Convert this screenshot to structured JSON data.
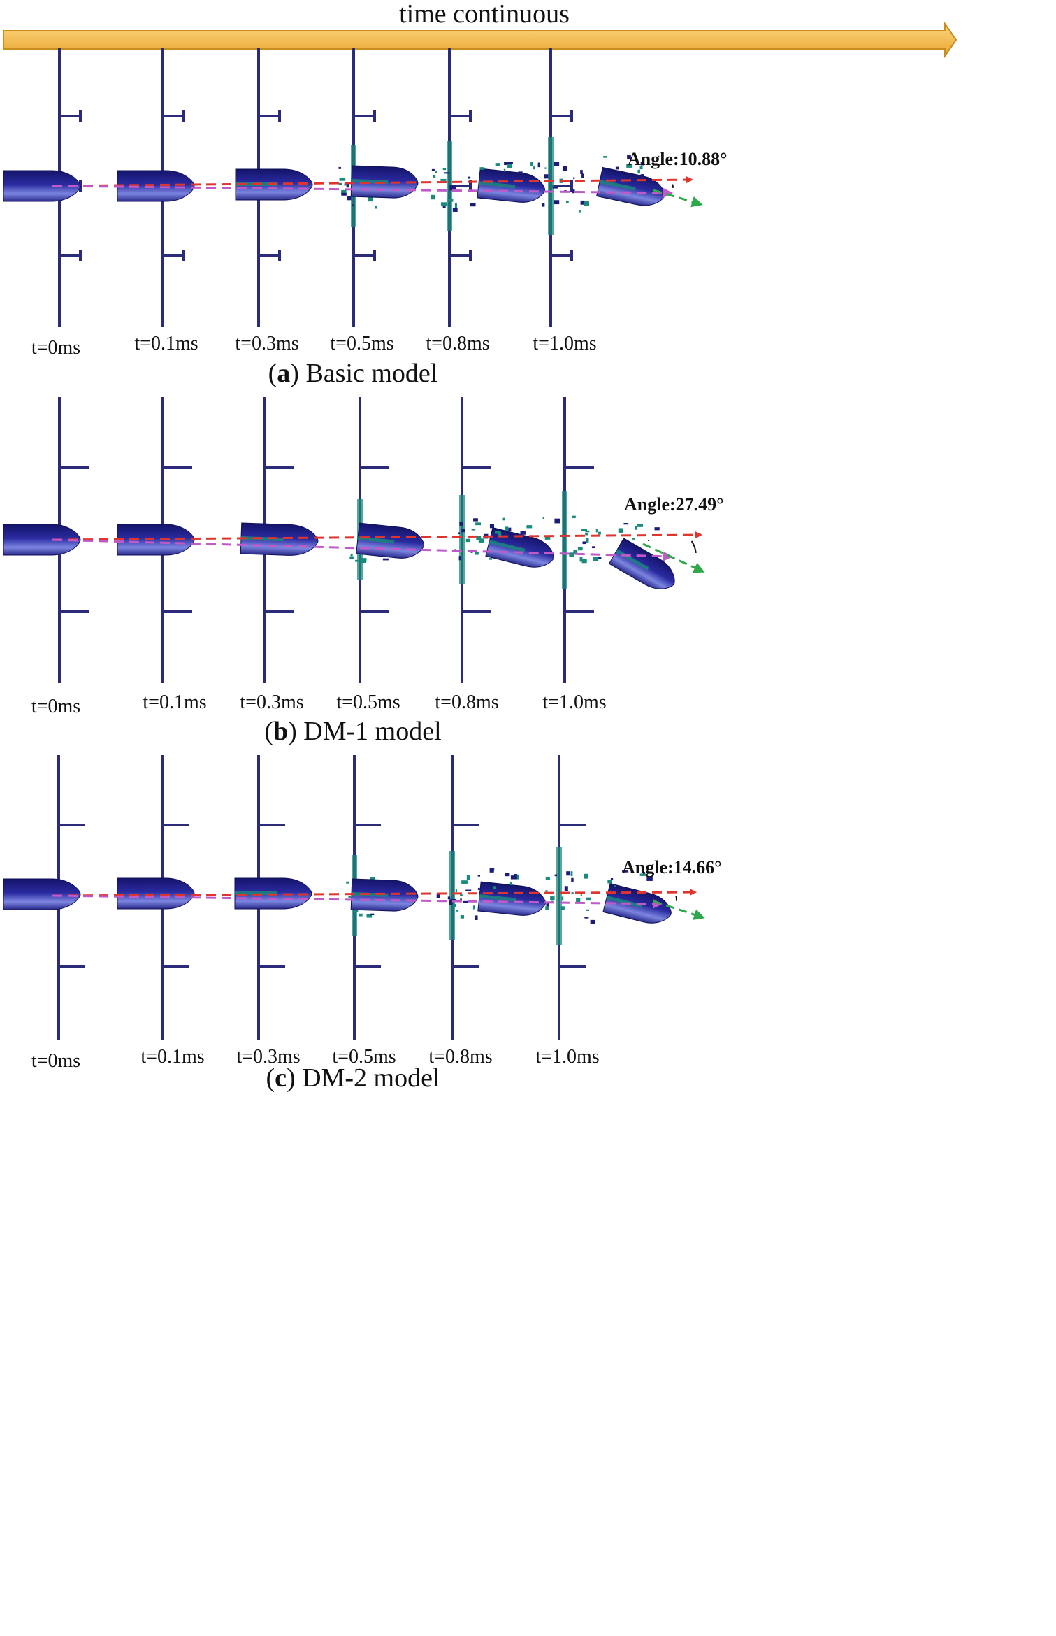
{
  "header": {
    "arrow_label": "time continuous"
  },
  "colors": {
    "structure": "#2b2b7a",
    "projectile_dark": "#1c1c78",
    "projectile_light": "#6f7ad8",
    "debris": "#1a8a7a",
    "initial_path": "#e0352f",
    "actual_path": "#c05ac8",
    "exit_direction": "#2ea84a",
    "header_arrow": "#f3b73e"
  },
  "panels": [
    {
      "id": "a",
      "caption_letter": "a",
      "caption_text": ") Basic model",
      "angle_label": "Angle:10.88°",
      "deflection_angle_deg": 10.88,
      "times": [
        "t=0ms",
        "t=0.1ms",
        "t=0.3ms",
        "t=0.5ms",
        "t=0.8ms",
        "t=1.0ms"
      ]
    },
    {
      "id": "b",
      "caption_letter": "b",
      "caption_text": ") DM-1 model",
      "angle_label": "Angle:27.49°",
      "deflection_angle_deg": 27.49,
      "times": [
        "t=0ms",
        "t=0.1ms",
        "t=0.3ms",
        "t=0.5ms",
        "t=0.8ms",
        "t=1.0ms"
      ]
    },
    {
      "id": "c",
      "caption_letter": "c",
      "caption_text": ") DM-2 model",
      "angle_label": "Angle:14.66°",
      "deflection_angle_deg": 14.66,
      "times": [
        "t=0ms",
        "t=0.1ms",
        "t=0.3ms",
        "t=0.5ms",
        "t=0.8ms",
        "t=1.0ms"
      ]
    }
  ]
}
